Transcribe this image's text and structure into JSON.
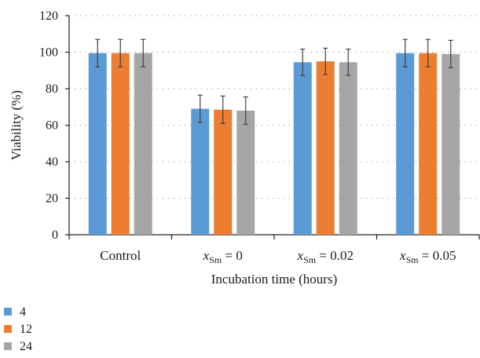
{
  "chart_data": {
    "type": "bar",
    "categories": [
      {
        "main": "Control",
        "var": "",
        "sub": "",
        "val": ""
      },
      {
        "main": "",
        "var": "x",
        "sub": "Sm",
        "val": " = 0"
      },
      {
        "main": "",
        "var": "x",
        "sub": "Sm",
        "val": " = 0.02"
      },
      {
        "main": "",
        "var": "x",
        "sub": "Sm",
        "val": " = 0.05"
      }
    ],
    "series": [
      {
        "name": "4",
        "color": "#5b9bd5",
        "values": [
          99.5,
          69,
          94.5,
          99.5
        ],
        "errors": [
          7.5,
          7.5,
          7.2,
          7.5
        ]
      },
      {
        "name": "12",
        "color": "#ed7d31",
        "values": [
          99.5,
          68.5,
          95,
          99.5
        ],
        "errors": [
          7.5,
          7.5,
          7.2,
          7.5
        ]
      },
      {
        "name": "24",
        "color": "#a5a5a5",
        "values": [
          99.5,
          68,
          94.5,
          99
        ],
        "errors": [
          7.5,
          7.5,
          7.2,
          7.5
        ]
      }
    ],
    "xlabel": "Incubation time (hours)",
    "ylabel": "Viability (%)",
    "ylim": [
      0,
      120
    ],
    "yticks": [
      0,
      20,
      40,
      60,
      80,
      100,
      120
    ],
    "grid": true,
    "legend": "bottom-left"
  }
}
